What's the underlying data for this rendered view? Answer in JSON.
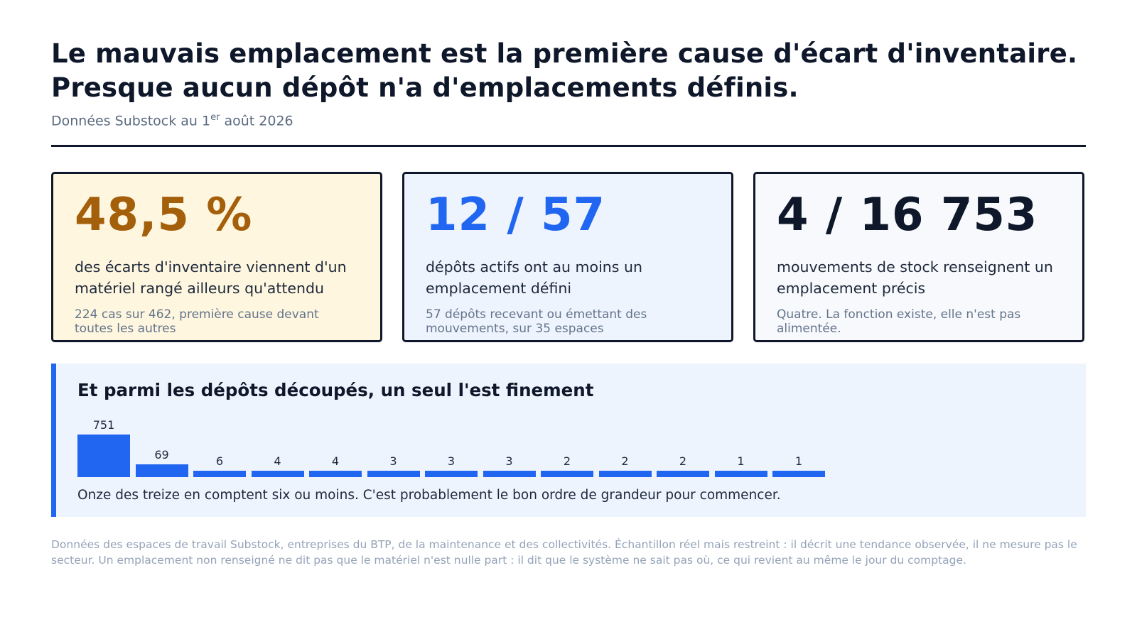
{
  "header": {
    "title_line1": "Le mauvais emplacement est la première cause d'écart d'inventaire.",
    "title_line2": "Presque aucun dépôt n'a d'emplacements définis.",
    "subtitle_pre": "Données Substock au 1",
    "subtitle_sup": "er",
    "subtitle_post": " août 2026"
  },
  "cards": [
    {
      "value": "48,5 %",
      "description": "des écarts d'inventaire viennent d'un matériel rangé ailleurs qu'attendu",
      "note": "224 cas sur 462, première cause devant toutes les autres",
      "accent": "#a45f0b"
    },
    {
      "value": "12 / 57",
      "description": "dépôts actifs ont au moins un emplacement défini",
      "note": "57 dépôts recevant ou émettant des mouvements, sur 35 espaces",
      "accent": "#2166f0"
    },
    {
      "value": "4 / 16 753",
      "description": "mouvements de stock renseignent un emplacement précis",
      "note": "Quatre. La fonction existe, elle n'est pas alimentée.",
      "accent": "#0f172a"
    }
  ],
  "chart_data": {
    "type": "bar",
    "title": "Et parmi les dépôts découpés, un seul l'est finement",
    "values": [
      751,
      69,
      6,
      4,
      4,
      3,
      3,
      3,
      2,
      2,
      2,
      1,
      1
    ],
    "data_labels": [
      "751",
      "69",
      "6",
      "4",
      "4",
      "3",
      "3",
      "3",
      "2",
      "2",
      "2",
      "1",
      "1"
    ],
    "color": "#2166f0",
    "grid": false,
    "axes_visible": false,
    "caption": "Onze des treize en comptent six ou moins. C'est probablement le bon ordre de grandeur pour commencer."
  },
  "footer": {
    "text": "Données des espaces de travail Substock, entreprises du BTP, de la maintenance et des collectivités. Échantillon réel mais restreint : il décrit une tendance observée, il ne mesure pas le secteur. Un emplacement non renseigné ne dit pas que le matériel n'est nulle part : il dit que le système ne sait pas où, ce qui revient au même le jour du comptage."
  }
}
